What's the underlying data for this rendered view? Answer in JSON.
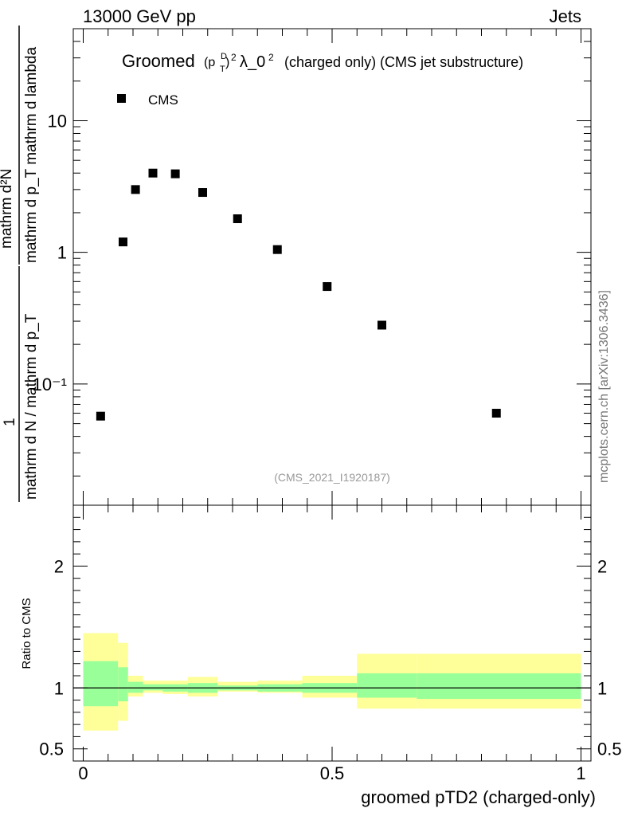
{
  "header": {
    "left": "13000 GeV pp",
    "right": "Jets"
  },
  "side_label": "mcplots.cern.ch [arXiv:1306.3436]",
  "watermark": "(CMS_2021_I1920187)",
  "colors": {
    "band_outer": "#ffff99",
    "band_inner": "#99ff99",
    "marker": "#000000",
    "side_text": "#777777",
    "watermark": "#999999"
  },
  "chart_data": [
    {
      "type": "scatter",
      "title_parts": {
        "groomed": "Groomed",
        "p": "(p",
        "sub": "T",
        "sup": "D",
        "close": ")",
        "sq": "2",
        "lambda": "λ_0",
        "lambda_sup": "2",
        "rest": "(charged only) (CMS jet substructure)"
      },
      "ylabel": {
        "numerator": "mathrm d",
        "numerator_sup": "2",
        "numerator_N": "N",
        "den1": "mathrm d p",
        "den1_sub": "T",
        "den2": "mathrm d lambda",
        "full_num": "1",
        "full_den": "mathrm d N / mathrm d p",
        "full_den_sub": "T"
      },
      "ylabel_text": {
        "num_line": "mathrm d²N",
        "den_line": "mathrm d p_T mathrm d lambda",
        "one": "1",
        "den2_line": "mathrm d N / mathrm d p_T"
      },
      "y_scale": "log",
      "ylim": [
        0.012,
        50
      ],
      "xlim": [
        -0.02,
        1.02
      ],
      "y_ticks": [
        {
          "value": 10,
          "label": "10"
        },
        {
          "value": 1,
          "label": "1"
        },
        {
          "value": 0.1,
          "label": "10⁻¹"
        }
      ],
      "legend": {
        "position": "top-left",
        "entries": [
          "CMS"
        ]
      },
      "series": [
        {
          "name": "CMS",
          "marker": "square",
          "x": [
            0.035,
            0.08,
            0.105,
            0.14,
            0.185,
            0.24,
            0.31,
            0.39,
            0.49,
            0.6,
            0.83
          ],
          "y": [
            0.057,
            1.2,
            3.0,
            4.0,
            3.95,
            2.85,
            1.8,
            1.05,
            0.55,
            0.28,
            0.06
          ]
        }
      ]
    },
    {
      "type": "area",
      "ylabel": "Ratio to CMS",
      "xlabel": "groomed pTD2 (charged-only)",
      "ylim": [
        0.4,
        2.5
      ],
      "xlim": [
        -0.02,
        1.02
      ],
      "y_ticks": [
        {
          "value": 2,
          "label": "2"
        },
        {
          "value": 1,
          "label": "1"
        },
        {
          "value": 0.5,
          "label": "0.5"
        }
      ],
      "x_ticks": [
        {
          "value": 0,
          "label": "0"
        },
        {
          "value": 0.5,
          "label": "0.5"
        },
        {
          "value": 1,
          "label": "1"
        }
      ],
      "reference_line": 1.0,
      "bands": [
        {
          "x0": 0.0,
          "x1": 0.07,
          "outer": [
            0.65,
            1.45
          ],
          "inner": [
            0.85,
            1.22
          ]
        },
        {
          "x0": 0.07,
          "x1": 0.09,
          "outer": [
            0.73,
            1.37
          ],
          "inner": [
            0.89,
            1.17
          ]
        },
        {
          "x0": 0.09,
          "x1": 0.12,
          "outer": [
            0.93,
            1.1
          ],
          "inner": [
            0.96,
            1.05
          ]
        },
        {
          "x0": 0.12,
          "x1": 0.16,
          "outer": [
            0.96,
            1.06
          ],
          "inner": [
            0.98,
            1.03
          ]
        },
        {
          "x0": 0.16,
          "x1": 0.21,
          "outer": [
            0.95,
            1.06
          ],
          "inner": [
            0.97,
            1.03
          ]
        },
        {
          "x0": 0.21,
          "x1": 0.27,
          "outer": [
            0.93,
            1.09
          ],
          "inner": [
            0.96,
            1.04
          ]
        },
        {
          "x0": 0.27,
          "x1": 0.35,
          "outer": [
            0.97,
            1.05
          ],
          "inner": [
            0.98,
            1.02
          ]
        },
        {
          "x0": 0.35,
          "x1": 0.44,
          "outer": [
            0.96,
            1.06
          ],
          "inner": [
            0.97,
            1.03
          ]
        },
        {
          "x0": 0.44,
          "x1": 0.55,
          "outer": [
            0.92,
            1.1
          ],
          "inner": [
            0.96,
            1.04
          ]
        },
        {
          "x0": 0.55,
          "x1": 0.67,
          "outer": [
            0.83,
            1.28
          ],
          "inner": [
            0.92,
            1.12
          ]
        },
        {
          "x0": 0.67,
          "x1": 1.0,
          "outer": [
            0.83,
            1.28
          ],
          "inner": [
            0.91,
            1.12
          ]
        }
      ]
    }
  ]
}
